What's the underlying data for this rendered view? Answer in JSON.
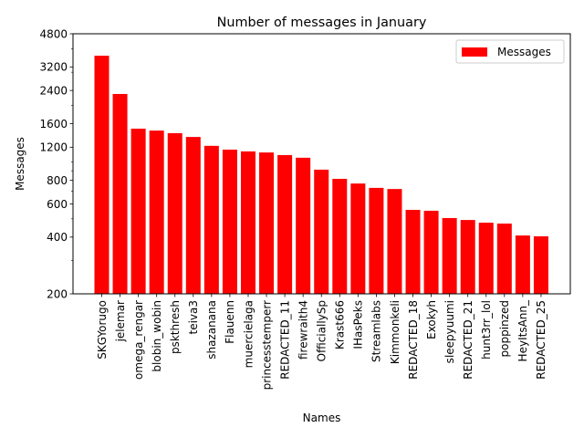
{
  "chart_data": {
    "type": "bar",
    "title": "Number of messages in January",
    "xlabel": "Names",
    "ylabel": "Messages",
    "yscale": "log",
    "ylim": [
      200,
      4800
    ],
    "yticks": [
      200,
      400,
      600,
      800,
      1200,
      1600,
      2400,
      3200,
      4800
    ],
    "yticks_minor": [
      300,
      500,
      700,
      900,
      1000,
      2000,
      3000,
      4000
    ],
    "grid": false,
    "legend": {
      "position": "upper right",
      "entries": [
        "Messages"
      ]
    },
    "bar_color": "#ff0000",
    "categories": [
      "SKGYorugo",
      "jelemar",
      "omega_rengar",
      "blobin_wobin",
      "pskthresh",
      "teiva3",
      "shazanana",
      "Flauenn",
      "muercielaga",
      "princesstemperr",
      "REDACTED_11",
      "firewraith4",
      "OfficiallySp",
      "Krast666",
      "IHasPeks",
      "Streamlabs",
      "Kimmonkeli",
      "REDACTED_18",
      "Exokyh",
      "sleepyuumi",
      "REDACTED_21",
      "hunt3rr_lol",
      "poppinzed",
      "HeyItsAnn_",
      "REDACTED_25"
    ],
    "series": [
      {
        "name": "Messages",
        "values": [
          3670,
          2300,
          1505,
          1470,
          1425,
          1360,
          1220,
          1165,
          1140,
          1125,
          1090,
          1055,
          912,
          815,
          770,
          730,
          720,
          558,
          552,
          505,
          493,
          477,
          472,
          408,
          404
        ]
      }
    ]
  }
}
